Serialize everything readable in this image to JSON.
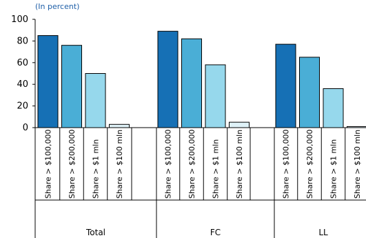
{
  "chart_data": {
    "type": "bar",
    "subtitle": "(In percent)",
    "ylim": [
      0,
      100
    ],
    "yticks": [
      0,
      20,
      40,
      60,
      80,
      100
    ],
    "grid": false,
    "legend": "none",
    "groups": [
      {
        "name": "Total",
        "bars": [
          {
            "label": "Share > $100,000",
            "value": 85
          },
          {
            "label": "Share > $200,000",
            "value": 76
          },
          {
            "label": "Share > $1 mln",
            "value": 50
          },
          {
            "label": "Share > $100 mln",
            "value": 3
          }
        ]
      },
      {
        "name": "FC",
        "bars": [
          {
            "label": "Share > $100,000",
            "value": 89
          },
          {
            "label": "Share > $200,000",
            "value": 82
          },
          {
            "label": "Share > $1 mln",
            "value": 58
          },
          {
            "label": "Share > $100 mln",
            "value": 5
          }
        ]
      },
      {
        "name": "LL",
        "bars": [
          {
            "label": "Share > $100,000",
            "value": 77
          },
          {
            "label": "Share > $200,000",
            "value": 65
          },
          {
            "label": "Share > $1 mln",
            "value": 36
          },
          {
            "label": "Share > $100 mln",
            "value": 1
          }
        ]
      }
    ],
    "colors": [
      "#1670b5",
      "#4aaed6",
      "#96d8ec",
      "#dff2f8"
    ]
  }
}
